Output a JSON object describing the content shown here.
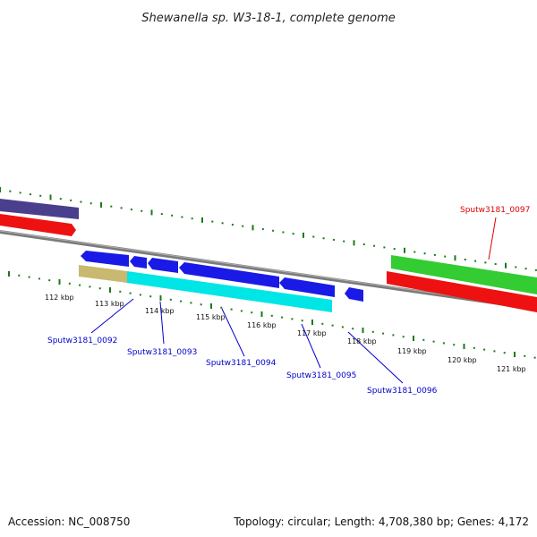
{
  "title": "Shewanella sp. W3-18-1, complete genome",
  "footer": {
    "accession": "Accession: NC_008750",
    "summary": "Topology: circular; Length: 4,708,380 bp; Genes: 4,172"
  },
  "colors": {
    "backbone": "#808080",
    "tick": "#1a7a1a",
    "forward_gene": "#1a1ae6",
    "cds_cyan": "#00e5e5",
    "rna_khaki": "#c8b870",
    "red_gene": "#ee1111",
    "green_gene": "#33cc33",
    "purple_gene": "#4a3f8c",
    "label_blue": "#0000cc",
    "label_red": "#dd0000"
  },
  "kbp_ticks": [
    "112 kbp",
    "113 kbp",
    "114 kbp",
    "115 kbp",
    "116 kbp",
    "117 kbp",
    "118 kbp",
    "119 kbp",
    "120 kbp",
    "121 kbp"
  ],
  "gene_labels": [
    {
      "text": "Sputw3181_0092",
      "color": "blue"
    },
    {
      "text": "Sputw3181_0093",
      "color": "blue"
    },
    {
      "text": "Sputw3181_0094",
      "color": "blue"
    },
    {
      "text": "Sputw3181_0095",
      "color": "blue"
    },
    {
      "text": "Sputw3181_0096",
      "color": "blue"
    },
    {
      "text": "Sputw3181_0097",
      "color": "red"
    }
  ]
}
